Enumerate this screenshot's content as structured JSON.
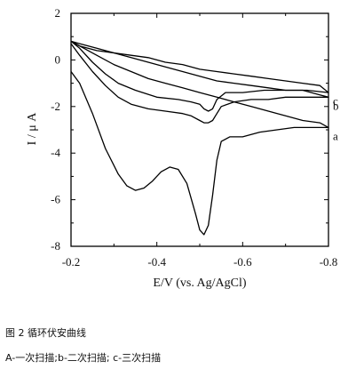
{
  "chart_data": {
    "type": "line",
    "xlabel": "E/V (vs. Ag/AgCl)",
    "ylabel": "I / μ A",
    "xlim": [
      -0.2,
      -0.8
    ],
    "ylim": [
      -8,
      2
    ],
    "x_ticks": [
      -0.2,
      -0.4,
      -0.6,
      -0.8
    ],
    "x_tick_labels": [
      "-0.2",
      "-0.4",
      "-0.6",
      "-0.8"
    ],
    "y_ticks": [
      2,
      0,
      -2,
      -4,
      -6,
      -8
    ],
    "y_tick_labels": [
      "2",
      "0",
      "-2",
      "-4",
      "-6",
      "-8"
    ],
    "grid": false,
    "series": [
      {
        "name": "a",
        "x": [
          -0.2,
          -0.22,
          -0.25,
          -0.28,
          -0.31,
          -0.33,
          -0.35,
          -0.37,
          -0.39,
          -0.41,
          -0.43,
          -0.45,
          -0.47,
          -0.49,
          -0.5,
          -0.51,
          -0.52,
          -0.53,
          -0.54,
          -0.55,
          -0.57,
          -0.6,
          -0.64,
          -0.68,
          -0.72,
          -0.76,
          -0.8,
          -0.78,
          -0.74,
          -0.7,
          -0.66,
          -0.62,
          -0.58,
          -0.54,
          -0.5,
          -0.46,
          -0.42,
          -0.38,
          -0.34,
          -0.3,
          -0.26,
          -0.22,
          -0.2
        ],
        "y": [
          -0.5,
          -1.0,
          -2.3,
          -3.8,
          -4.9,
          -5.4,
          -5.6,
          -5.5,
          -5.2,
          -4.8,
          -4.6,
          -4.7,
          -5.3,
          -6.6,
          -7.3,
          -7.5,
          -7.1,
          -5.8,
          -4.3,
          -3.5,
          -3.3,
          -3.3,
          -3.1,
          -3.0,
          -2.9,
          -2.9,
          -2.9,
          -2.7,
          -2.6,
          -2.4,
          -2.2,
          -2.0,
          -1.8,
          -1.6,
          -1.4,
          -1.2,
          -1.0,
          -0.8,
          -0.5,
          -0.2,
          0.2,
          0.6,
          0.8
        ]
      },
      {
        "name": "b",
        "x": [
          -0.2,
          -0.22,
          -0.25,
          -0.28,
          -0.31,
          -0.34,
          -0.38,
          -0.42,
          -0.46,
          -0.48,
          -0.5,
          -0.51,
          -0.52,
          -0.53,
          -0.54,
          -0.55,
          -0.58,
          -0.62,
          -0.66,
          -0.7,
          -0.74,
          -0.78,
          -0.8,
          -0.78,
          -0.74,
          -0.7,
          -0.66,
          -0.62,
          -0.58,
          -0.54,
          -0.5,
          -0.46,
          -0.42,
          -0.38,
          -0.34,
          -0.3,
          -0.26,
          -0.22,
          -0.2
        ],
        "y": [
          0.7,
          0.2,
          -0.5,
          -1.1,
          -1.6,
          -1.9,
          -2.1,
          -2.2,
          -2.3,
          -2.4,
          -2.6,
          -2.7,
          -2.7,
          -2.6,
          -2.3,
          -2.0,
          -1.8,
          -1.7,
          -1.7,
          -1.6,
          -1.6,
          -1.6,
          -1.6,
          -1.5,
          -1.3,
          -1.3,
          -1.2,
          -1.1,
          -1.0,
          -0.9,
          -0.7,
          -0.5,
          -0.3,
          -0.1,
          0.1,
          0.3,
          0.5,
          0.7,
          0.8
        ]
      },
      {
        "name": "c",
        "x": [
          -0.2,
          -0.22,
          -0.25,
          -0.28,
          -0.31,
          -0.35,
          -0.4,
          -0.45,
          -0.48,
          -0.5,
          -0.51,
          -0.52,
          -0.53,
          -0.54,
          -0.56,
          -0.6,
          -0.65,
          -0.7,
          -0.75,
          -0.8,
          -0.78,
          -0.74,
          -0.7,
          -0.66,
          -0.62,
          -0.58,
          -0.54,
          -0.5,
          -0.46,
          -0.42,
          -0.38,
          -0.34,
          -0.3,
          -0.26,
          -0.22,
          -0.2
        ],
        "y": [
          0.8,
          0.5,
          -0.1,
          -0.6,
          -1.0,
          -1.3,
          -1.6,
          -1.7,
          -1.8,
          -1.9,
          -2.1,
          -2.2,
          -2.1,
          -1.7,
          -1.4,
          -1.4,
          -1.3,
          -1.3,
          -1.3,
          -1.4,
          -1.1,
          -1.0,
          -0.9,
          -0.8,
          -0.7,
          -0.6,
          -0.5,
          -0.4,
          -0.2,
          -0.1,
          0.1,
          0.2,
          0.3,
          0.4,
          0.6,
          0.8
        ]
      }
    ]
  },
  "caption": {
    "figure_title": "图 2 循环伏安曲线",
    "legend_note": "A-一次扫描;b-二次扫描; c-三次扫描"
  }
}
